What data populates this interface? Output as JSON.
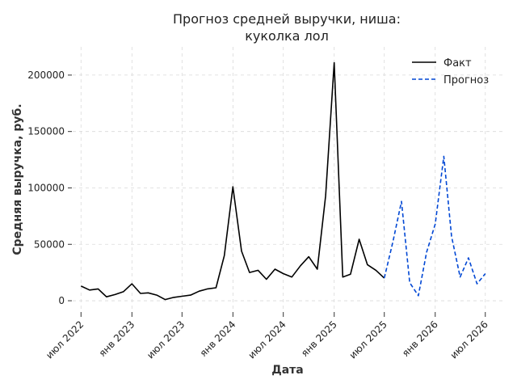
{
  "chart_data": {
    "type": "line",
    "title_lines": [
      "Прогноз средней выручки, ниша:",
      "куколка лол"
    ],
    "xlabel": "Дата",
    "ylabel": "Средняя выручка, руб.",
    "ylim": [
      -10000,
      225000
    ],
    "xlim": [
      "2022-06-01",
      "2026-09-01"
    ],
    "grid": true,
    "legend_position": "top-right",
    "x_ticks": [
      {
        "date": "2022-07-01",
        "label": "июл 2022"
      },
      {
        "date": "2023-01-01",
        "label": "янв 2023"
      },
      {
        "date": "2023-07-01",
        "label": "июл 2023"
      },
      {
        "date": "2024-01-01",
        "label": "янв 2024"
      },
      {
        "date": "2024-07-01",
        "label": "июл 2024"
      },
      {
        "date": "2025-01-01",
        "label": "янв 2025"
      },
      {
        "date": "2025-07-01",
        "label": "июл 2025"
      },
      {
        "date": "2026-01-01",
        "label": "янв 2026"
      },
      {
        "date": "2026-07-01",
        "label": "июл 2026"
      }
    ],
    "y_ticks": [
      0,
      50000,
      100000,
      150000,
      200000
    ],
    "series": [
      {
        "name": "Факт",
        "color": "#000000",
        "style": "solid",
        "x": [
          "2022-07-01",
          "2022-08-01",
          "2022-09-01",
          "2022-10-01",
          "2022-11-01",
          "2022-12-01",
          "2023-01-01",
          "2023-02-01",
          "2023-03-01",
          "2023-04-01",
          "2023-05-01",
          "2023-06-01",
          "2023-07-01",
          "2023-08-01",
          "2023-09-01",
          "2023-10-01",
          "2023-11-01",
          "2023-12-01",
          "2024-01-01",
          "2024-02-01",
          "2024-03-01",
          "2024-04-01",
          "2024-05-01",
          "2024-06-01",
          "2024-07-01",
          "2024-08-01",
          "2024-09-01",
          "2024-10-01",
          "2024-11-01",
          "2024-12-01",
          "2025-01-01",
          "2025-02-01",
          "2025-03-01",
          "2025-04-01",
          "2025-05-01",
          "2025-06-01",
          "2025-07-01"
        ],
        "y": [
          13000,
          9500,
          10500,
          3500,
          5500,
          8000,
          15000,
          6500,
          7000,
          5000,
          1000,
          3000,
          4000,
          5000,
          8500,
          10500,
          11500,
          40000,
          101000,
          44000,
          25000,
          27000,
          19000,
          28000,
          24000,
          21000,
          31000,
          39000,
          28000,
          93000,
          211000,
          21000,
          23500,
          54500,
          32000,
          27000,
          20000
        ]
      },
      {
        "name": "Прогноз",
        "color": "#0047d4",
        "style": "dashed",
        "x": [
          "2025-07-01",
          "2025-08-01",
          "2025-09-01",
          "2025-10-01",
          "2025-11-01",
          "2025-12-01",
          "2026-01-01",
          "2026-02-01",
          "2026-03-01",
          "2026-04-01",
          "2026-05-01",
          "2026-06-01",
          "2026-07-01"
        ],
        "y": [
          20000,
          52000,
          88000,
          16000,
          4500,
          43000,
          68000,
          128000,
          57000,
          21000,
          38000,
          15000,
          24000
        ]
      }
    ]
  }
}
